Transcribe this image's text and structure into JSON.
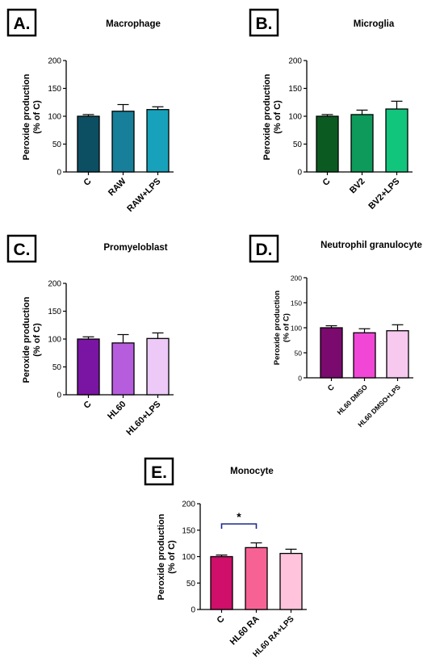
{
  "chart_data": [
    {
      "panel": "A.",
      "title": "Macrophage",
      "type": "bar",
      "ylabel_line1": "Peroxide production",
      "ylabel_line2": "(% of C)",
      "ylim": [
        0,
        200
      ],
      "yticks": [
        0,
        50,
        100,
        150,
        200
      ],
      "categories": [
        "C",
        "RAW",
        "RAW+LPS"
      ],
      "values": [
        100,
        109,
        112
      ],
      "errors": [
        3,
        12,
        5
      ],
      "colors": [
        "#0c4f63",
        "#177f99",
        "#18a1ba"
      ],
      "significance": null
    },
    {
      "panel": "B.",
      "title": "Microglia",
      "type": "bar",
      "ylabel_line1": "Peroxide production",
      "ylabel_line2": "(% of C)",
      "ylim": [
        0,
        200
      ],
      "yticks": [
        0,
        50,
        100,
        150,
        200
      ],
      "categories": [
        "C",
        "BV2",
        "BV2+LPS"
      ],
      "values": [
        100,
        103,
        113
      ],
      "errors": [
        3,
        8,
        14
      ],
      "colors": [
        "#0b5a22",
        "#0e9a5a",
        "#12c57c"
      ],
      "significance": null
    },
    {
      "panel": "C.",
      "title": "Promyeloblast",
      "type": "bar",
      "ylabel_line1": "Peroxide production",
      "ylabel_line2": "(% of C)",
      "ylim": [
        0,
        200
      ],
      "yticks": [
        0,
        50,
        100,
        150,
        200
      ],
      "categories": [
        "C",
        "HL60",
        "HL60+LPS"
      ],
      "values": [
        100,
        93,
        101
      ],
      "errors": [
        4,
        15,
        10
      ],
      "colors": [
        "#7a15a3",
        "#b65ddd",
        "#ecc9f6"
      ],
      "significance": null
    },
    {
      "panel": "D.",
      "title": "Neutrophil granulocyte",
      "type": "bar",
      "ylabel_line1": "Peroxide production",
      "ylabel_line2": "(% of C)",
      "ylim": [
        0,
        200
      ],
      "yticks": [
        0,
        50,
        100,
        150,
        200
      ],
      "categories": [
        "C",
        "HL60 DMSO",
        "HL60 DMSO+LPS"
      ],
      "values": [
        100,
        90,
        94
      ],
      "errors": [
        4,
        8,
        12
      ],
      "colors": [
        "#7b0a6f",
        "#f047d6",
        "#f7c9ee"
      ],
      "significance": null
    },
    {
      "panel": "E.",
      "title": "Monocyte",
      "type": "bar",
      "ylabel_line1": "Peroxide production",
      "ylabel_line2": "(% of C)",
      "ylim": [
        0,
        200
      ],
      "yticks": [
        0,
        50,
        100,
        150,
        200
      ],
      "categories": [
        "C",
        "HL60 RA",
        "HL60 RA+LPS"
      ],
      "values": [
        100,
        117,
        106
      ],
      "errors": [
        3,
        9,
        8
      ],
      "colors": [
        "#cf0f6a",
        "#f76295",
        "#ffc3dc"
      ],
      "significance": {
        "from": 0,
        "to": 1,
        "label": "*",
        "color": "#1d2a8c"
      }
    }
  ]
}
